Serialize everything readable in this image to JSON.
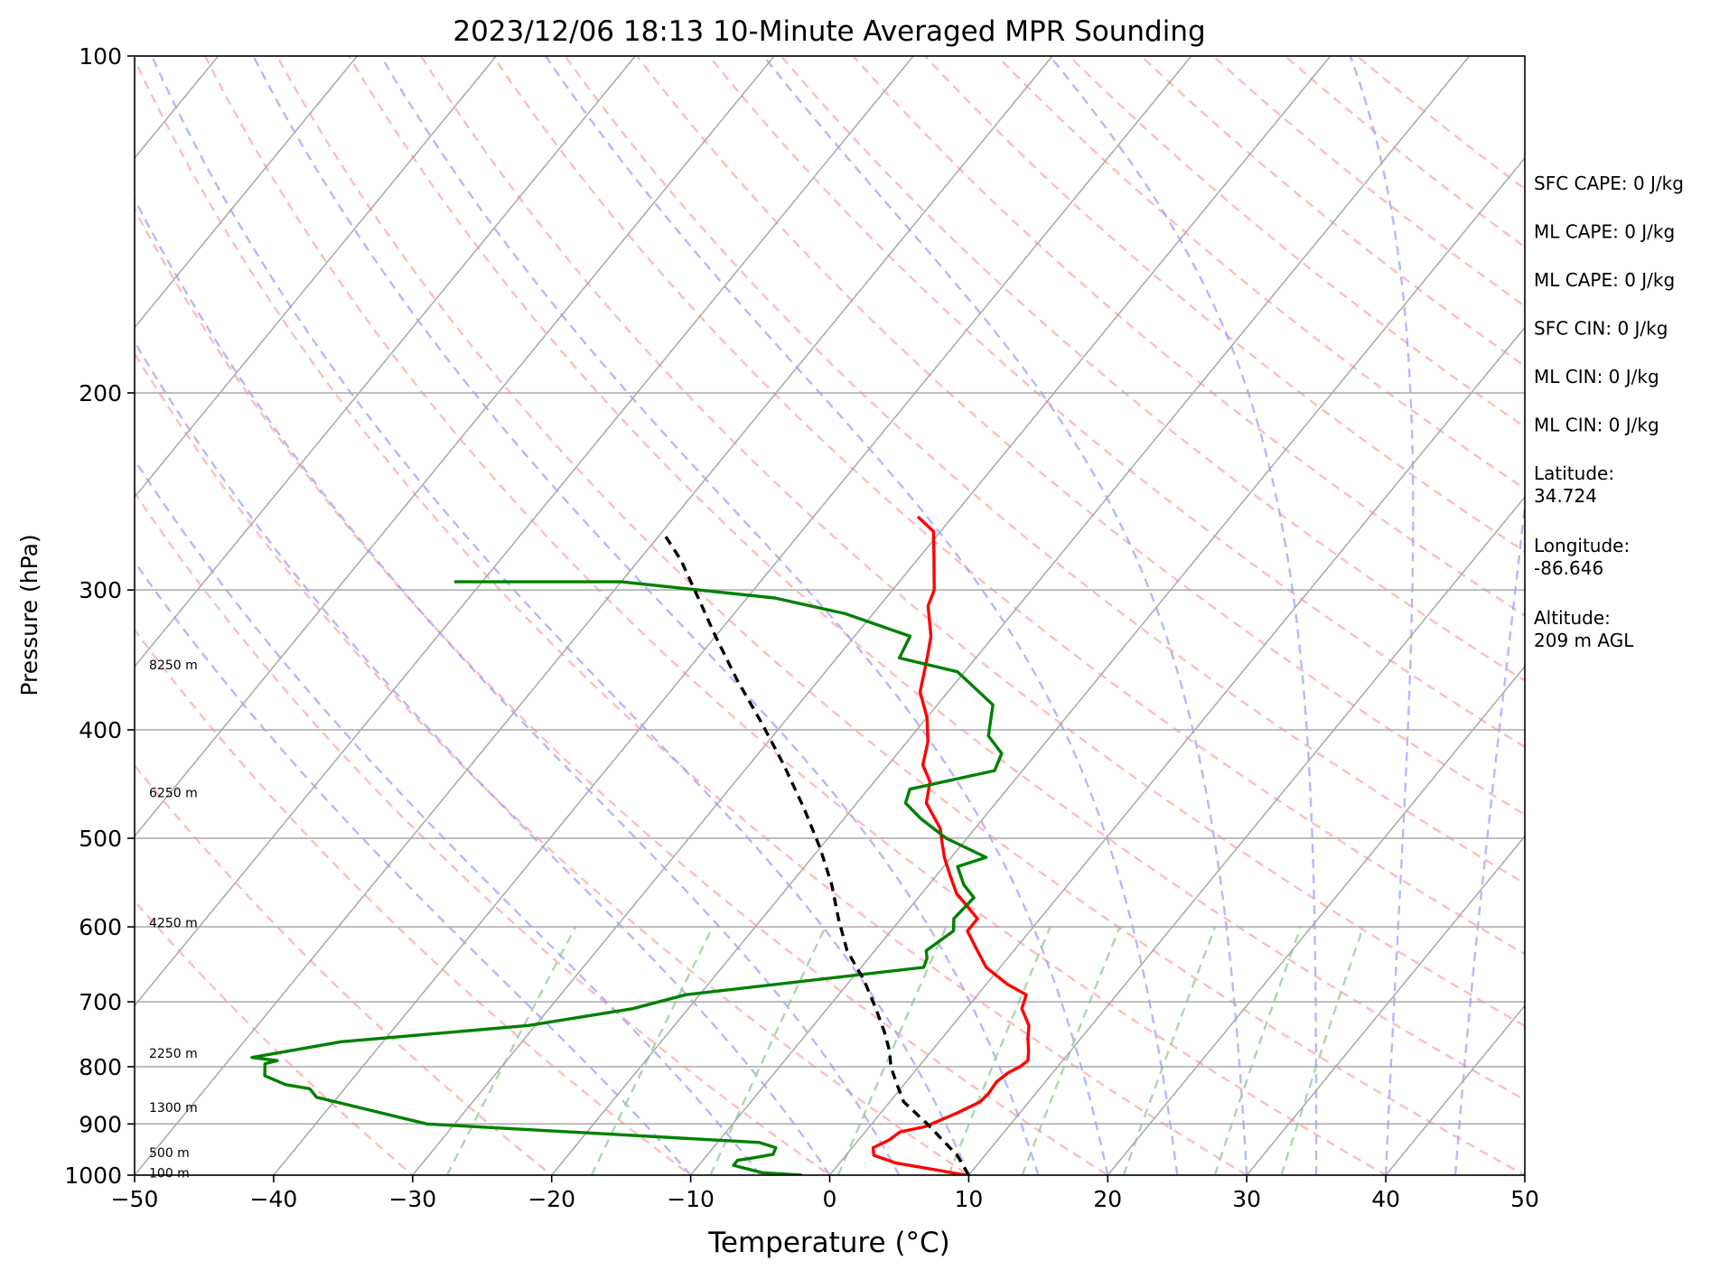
{
  "chart_data": {
    "type": "line",
    "subtype": "skew-t log-p sounding",
    "title": "2023/12/06 18:13 10-Minute Averaged MPR Sounding",
    "xlabel": "Temperature (°C)",
    "ylabel": "Pressure (hPa)",
    "xlim": [
      -50,
      50
    ],
    "ylim": [
      1000,
      100
    ],
    "y_scale": "log",
    "x_ticks": [
      "−50",
      "−40",
      "−30",
      "−20",
      "−10",
      "0",
      "10",
      "20",
      "30",
      "40",
      "50"
    ],
    "y_ticks": [
      100,
      200,
      300,
      400,
      500,
      600,
      700,
      800,
      900,
      1000
    ],
    "grid": true,
    "colors": {
      "temperature": "#ff0000",
      "dewpoint": "#008000",
      "parcel": "#000000",
      "isotherms": "#a9a9a9",
      "dry_adiabats": "#ff9999",
      "moist_adiabats": "#9999ff",
      "mixing_ratio": "#99cc99"
    },
    "series": [
      {
        "key": "temperature",
        "points": [
          [
            9.8,
            1000
          ],
          [
            7.5,
            990
          ],
          [
            4,
            975
          ],
          [
            2,
            960
          ],
          [
            1.5,
            945
          ],
          [
            2.2,
            930
          ],
          [
            2.5,
            915
          ],
          [
            4,
            905
          ],
          [
            5.5,
            880
          ],
          [
            6.5,
            860
          ],
          [
            6.6,
            845
          ],
          [
            6.5,
            825
          ],
          [
            6.8,
            810
          ],
          [
            7.3,
            800
          ],
          [
            7.5,
            790
          ],
          [
            7.0,
            775
          ],
          [
            6.2,
            755
          ],
          [
            5.5,
            735
          ],
          [
            4.0,
            710
          ],
          [
            3.5,
            690
          ],
          [
            1.5,
            675
          ],
          [
            -1,
            652
          ],
          [
            -3,
            625
          ],
          [
            -4.5,
            605
          ],
          [
            -4.5,
            590
          ],
          [
            -7.5,
            560
          ],
          [
            -9,
            540
          ],
          [
            -10.5,
            520
          ],
          [
            -11.5,
            505
          ],
          [
            -12.5,
            490
          ],
          [
            -15,
            465
          ],
          [
            -16,
            445
          ],
          [
            -17.5,
            430
          ],
          [
            -18.5,
            410
          ],
          [
            -20,
            390
          ],
          [
            -22,
            370
          ],
          [
            -23.5,
            345
          ],
          [
            -24.5,
            330
          ],
          [
            -26.5,
            310
          ],
          [
            -27,
            300
          ],
          [
            -29,
            280
          ],
          [
            -30.5,
            266
          ],
          [
            -32.5,
            258
          ]
        ]
      },
      {
        "key": "dewpoint",
        "points": [
          [
            -2,
            1000
          ],
          [
            -5,
            995
          ],
          [
            -7.5,
            980
          ],
          [
            -7.5,
            970
          ],
          [
            -6.5,
            965
          ],
          [
            -5.3,
            958
          ],
          [
            -5.5,
            945
          ],
          [
            -7,
            935
          ],
          [
            -32,
            900
          ],
          [
            -41.5,
            852
          ],
          [
            -42.5,
            837
          ],
          [
            -44.5,
            830
          ],
          [
            -46.5,
            815
          ],
          [
            -47.2,
            795
          ],
          [
            -46.5,
            790
          ],
          [
            -48.5,
            785
          ],
          [
            -43,
            760
          ],
          [
            -30.5,
            735
          ],
          [
            -24,
            710
          ],
          [
            -21,
            690
          ],
          [
            -5.5,
            652
          ],
          [
            -5.8,
            640
          ],
          [
            -6.3,
            630
          ],
          [
            -5.5,
            605
          ],
          [
            -6.2,
            590
          ],
          [
            -6.0,
            565
          ],
          [
            -7.5,
            550
          ],
          [
            -9.0,
            530
          ],
          [
            -7.5,
            520
          ],
          [
            -11.5,
            500
          ],
          [
            -14.5,
            480
          ],
          [
            -16.5,
            465
          ],
          [
            -17,
            452
          ],
          [
            -12,
            435
          ],
          [
            -12.5,
            420
          ],
          [
            -14.5,
            405
          ],
          [
            -16,
            380
          ],
          [
            -20.5,
            355
          ],
          [
            -25.5,
            345
          ],
          [
            -26,
            330
          ],
          [
            -32,
            315
          ],
          [
            -38,
            305
          ],
          [
            -50,
            295
          ],
          [
            -62,
            295
          ]
        ]
      },
      {
        "key": "parcel",
        "points": [
          [
            10,
            1000
          ],
          [
            8,
            960
          ],
          [
            4,
            900
          ],
          [
            1,
            860
          ],
          [
            -0.5,
            830
          ],
          [
            -2,
            800
          ],
          [
            -3,
            775
          ],
          [
            -4.5,
            745
          ],
          [
            -6.5,
            710
          ],
          [
            -9,
            670
          ],
          [
            -12,
            630
          ],
          [
            -14.5,
            590
          ],
          [
            -17,
            550
          ],
          [
            -20,
            510
          ],
          [
            -23.5,
            470
          ],
          [
            -27.5,
            430
          ],
          [
            -31.5,
            395
          ],
          [
            -36,
            360
          ],
          [
            -40,
            330
          ],
          [
            -43.5,
            305
          ],
          [
            -47,
            282
          ],
          [
            -50,
            266
          ]
        ]
      }
    ],
    "height_labels": [
      {
        "text": "8250 m",
        "p": 350
      },
      {
        "text": "6250 m",
        "p": 455
      },
      {
        "text": "4250 m",
        "p": 595
      },
      {
        "text": "2250 m",
        "p": 778
      },
      {
        "text": "1300 m",
        "p": 870
      },
      {
        "text": "500 m",
        "p": 955
      },
      {
        "text": "100 m",
        "p": 995
      }
    ],
    "info_panel": [
      "SFC CAPE: 0 J/kg",
      "ML CAPE: 0 J/kg",
      "ML CAPE: 0 J/kg",
      "SFC CIN: 0 J/kg",
      "ML CIN: 0 J/kg",
      "ML CIN: 0 J/kg",
      "Latitude:\n34.724",
      "Longitude:\n-86.646",
      "Altitude:\n209 m AGL"
    ]
  }
}
